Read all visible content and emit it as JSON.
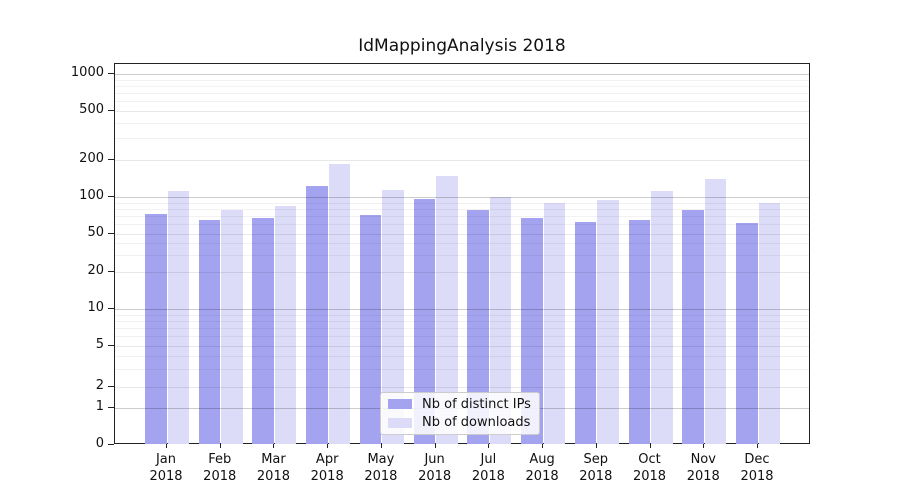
{
  "title": "IdMappingAnalysis 2018",
  "colors": {
    "ips_bar": "#a3a3f0",
    "downloads_bar": "#dcdcf8",
    "axis": "#222222",
    "legend_border": "#cccccc"
  },
  "legend": {
    "items": [
      {
        "label": "Nb of distinct IPs",
        "series": "ips"
      },
      {
        "label": "Nb of downloads",
        "series": "downloads"
      }
    ]
  },
  "chart_data": {
    "type": "bar",
    "title": "IdMappingAnalysis 2018",
    "categories": [
      "Jan 2018",
      "Feb 2018",
      "Mar 2018",
      "Apr 2018",
      "May 2018",
      "Jun 2018",
      "Jul 2018",
      "Aug 2018",
      "Sep 2018",
      "Oct 2018",
      "Nov 2018",
      "Dec 2018"
    ],
    "series": [
      {
        "name": "Nb of distinct IPs",
        "color": "#a3a3f0",
        "values": [
          73,
          65,
          67,
          122,
          71,
          96,
          78,
          68,
          63,
          65,
          79,
          62
        ]
      },
      {
        "name": "Nb of downloads",
        "color": "#dcdcf8",
        "values": [
          112,
          78,
          84,
          185,
          113,
          147,
          100,
          90,
          95,
          112,
          140,
          90
        ]
      }
    ],
    "xlabel": "",
    "ylabel": "",
    "yscale": "symlog",
    "yticks": [
      0,
      1,
      2,
      5,
      10,
      20,
      50,
      100,
      200,
      500,
      1000
    ],
    "ylim": [
      0,
      1300
    ],
    "grid": "horizontal",
    "legend_position": "lower center"
  }
}
